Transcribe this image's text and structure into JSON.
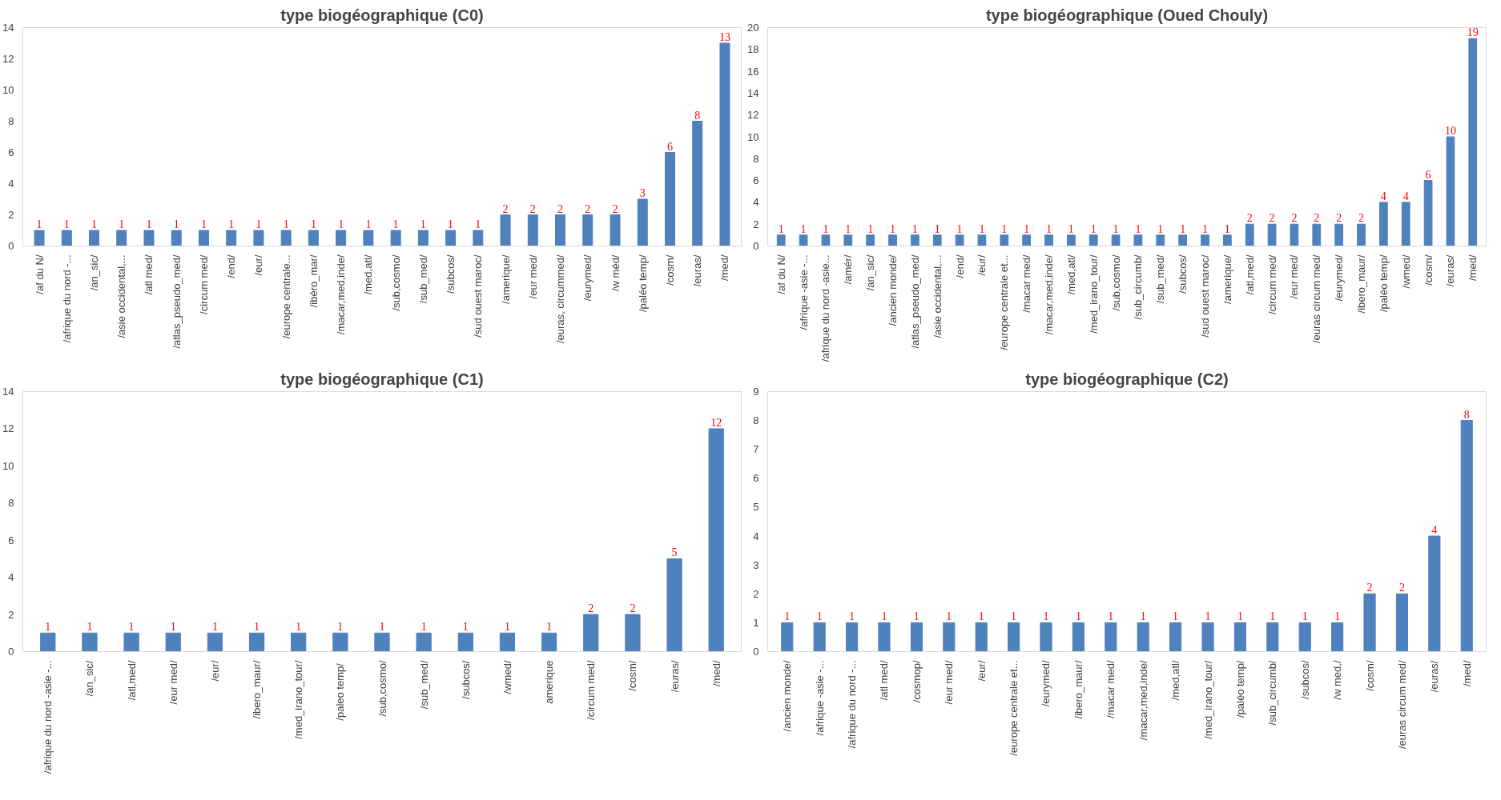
{
  "chart_data": [
    {
      "type": "bar",
      "title": "type biogéographique (C0)",
      "color": "#4f81bd",
      "data_labels": true,
      "grid": false,
      "ylim": [
        0,
        14
      ],
      "yticks": [
        0,
        2,
        4,
        6,
        8,
        10,
        12,
        14
      ],
      "categories": [
        "/af du N/",
        "/afrique du nord -...",
        "/an_sic/",
        "/asie occidental,...",
        "/atl med/",
        "/atlas_pseudo_med/",
        "/circum med/",
        "/end/",
        "/eur/",
        "/europe centrale...",
        "/ibéro_mar/",
        "/macar,med,inde/",
        "/med,atl/",
        "/sub,cosmo/",
        "/sub_med/",
        "/subcos/",
        "/sud ouest maroc/",
        "/amerique/",
        "/eur med/",
        "/euras, circummed/",
        "/eurymed/",
        "/w méd/",
        "/paléo temp/",
        "/cosm/",
        "/euras/",
        "/med/"
      ],
      "values": [
        1,
        1,
        1,
        1,
        1,
        1,
        1,
        1,
        1,
        1,
        1,
        1,
        1,
        1,
        1,
        1,
        1,
        2,
        2,
        2,
        2,
        2,
        3,
        6,
        8,
        13
      ]
    },
    {
      "type": "bar",
      "title": "type biogéographique (Oued Chouly)",
      "color": "#4f81bd",
      "data_labels": true,
      "grid": false,
      "ylim": [
        0,
        20
      ],
      "yticks": [
        0,
        2,
        4,
        6,
        8,
        10,
        12,
        14,
        16,
        18,
        20
      ],
      "categories": [
        "/af du N/",
        "/afrique -asie -...",
        "/afrique du nord -asie...",
        "/amér/",
        "/an_sic/",
        "/ancien monde/",
        "/atlas_pseudo_med/",
        "/asie occidental,...",
        "/end/",
        "/eur/",
        "/europe centrale et...",
        "/macar med/",
        "/macar,med,inde/",
        "/med,atl/",
        "/med_irano_tour/",
        "/sub,cosmo/",
        "/sub_circumb/",
        "/sub_med/",
        "/subcos/",
        "/sud ouest maroc/",
        "/amerique/",
        "/atl,med/",
        "/circum med/",
        "/eur med/",
        "/euras circum med/",
        "/eurymed/",
        "/ibero_maur/",
        "/paléo temp/",
        "/wmed/",
        "/cosm/",
        "/euras/",
        "/med/"
      ],
      "values": [
        1,
        1,
        1,
        1,
        1,
        1,
        1,
        1,
        1,
        1,
        1,
        1,
        1,
        1,
        1,
        1,
        1,
        1,
        1,
        1,
        1,
        2,
        2,
        2,
        2,
        2,
        2,
        4,
        4,
        6,
        10,
        19
      ]
    },
    {
      "type": "bar",
      "title": "type biogéographique (C1)",
      "color": "#4f81bd",
      "data_labels": true,
      "grid": false,
      "ylim": [
        0,
        14
      ],
      "yticks": [
        0,
        2,
        4,
        6,
        8,
        10,
        12,
        14
      ],
      "categories": [
        "/afrique du nord -asie -...",
        "/an_sic/",
        "/atl,med/",
        "/eur med/",
        "/eur/",
        "/ibero_maur/",
        "/med_irano_tour/",
        "/paleo  temp/",
        "/sub,cosmo/",
        "/sub_med/",
        "/subcos/",
        "/wmed/",
        "amerique",
        "/circum med/",
        "/cosm/",
        "/euras/",
        "/med/"
      ],
      "values": [
        1,
        1,
        1,
        1,
        1,
        1,
        1,
        1,
        1,
        1,
        1,
        1,
        1,
        2,
        2,
        5,
        12
      ]
    },
    {
      "type": "bar",
      "title": "type biogéographique (C2)",
      "color": "#4f81bd",
      "data_labels": true,
      "grid": false,
      "ylim": [
        0,
        9
      ],
      "yticks": [
        0,
        1,
        2,
        3,
        4,
        5,
        6,
        7,
        8,
        9
      ],
      "categories": [
        "/ancien monde/",
        "/afrique -asie -...",
        "/afrique du nord -...",
        "/atl med/",
        "/cosmop/",
        "/eur med/",
        "/eur/",
        "/europe centrale et...",
        "/eurymed/",
        "/ibero_maur/",
        "/macar med/",
        "/macar,med,inde/",
        "/med,atl/",
        "/med_irano_tour/",
        "/paléo temp/",
        "/sub_circumb/",
        "/subcos/",
        "/w med,/",
        "/cosm/",
        "/euras circum med/",
        "/euras/",
        "/med/"
      ],
      "values": [
        1,
        1,
        1,
        1,
        1,
        1,
        1,
        1,
        1,
        1,
        1,
        1,
        1,
        1,
        1,
        1,
        1,
        1,
        2,
        2,
        4,
        8
      ]
    }
  ]
}
